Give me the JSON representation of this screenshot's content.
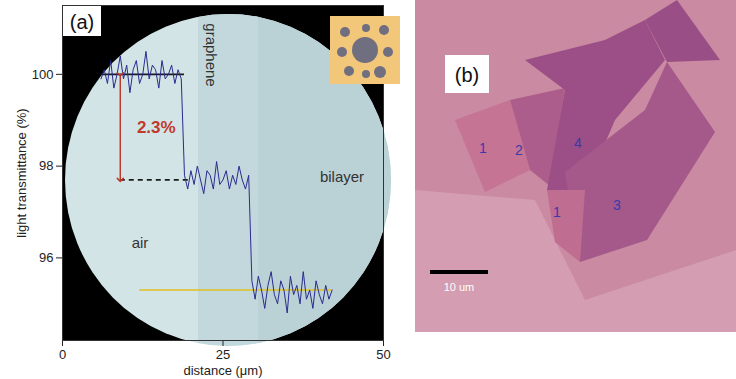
{
  "chart_data": {
    "type": "line",
    "panel_label": "(a)",
    "x_label": "distance (μm)",
    "y_label": "light transmittance (%)",
    "xlim": [
      0,
      50
    ],
    "ylim": [
      94.2,
      101.5
    ],
    "xticks": [
      0,
      25,
      50
    ],
    "yticks": [
      96,
      98,
      100
    ],
    "color": "#2b2b8f",
    "x": [
      6,
      6.5,
      7,
      7.5,
      8,
      8.5,
      9,
      9.5,
      10,
      10.5,
      11,
      11.5,
      12,
      12.5,
      13,
      13.5,
      14,
      14.5,
      15,
      15.5,
      16,
      16.5,
      17,
      17.5,
      18,
      18.5,
      19,
      19.5,
      20,
      20.5,
      21,
      21.5,
      22,
      22.5,
      23,
      23.5,
      24,
      24.5,
      25,
      25.5,
      26,
      26.5,
      27,
      27.5,
      28,
      28.5,
      29,
      29.5,
      30,
      30.5,
      31,
      31.5,
      32,
      32.5,
      33,
      33.5,
      34,
      34.5,
      35,
      35.5,
      36,
      36.5,
      37,
      37.5,
      38,
      38.5,
      39,
      39.5,
      40,
      40.5,
      41,
      41.5,
      42
    ],
    "values": [
      99.9,
      100.1,
      99.8,
      100.3,
      99.7,
      100.0,
      100.4,
      99.9,
      100.2,
      99.6,
      100.1,
      100.3,
      99.8,
      100.0,
      100.5,
      99.9,
      100.2,
      100.1,
      99.7,
      100.3,
      99.9,
      100.0,
      100.2,
      99.8,
      100.1,
      99.9,
      97.8,
      97.5,
      97.9,
      97.6,
      98.0,
      97.7,
      97.4,
      97.9,
      97.8,
      97.5,
      98.1,
      97.6,
      97.7,
      97.9,
      97.5,
      97.8,
      97.6,
      98.0,
      97.7,
      97.5,
      97.8,
      95.5,
      95.1,
      95.6,
      95.3,
      94.9,
      95.4,
      95.7,
      95.2,
      95.0,
      95.5,
      95.3,
      94.8,
      95.6,
      95.2,
      95.4,
      95.0,
      95.7,
      95.1,
      95.3,
      94.9,
      95.5,
      95.2,
      95.0,
      95.4,
      95.1,
      95.3
    ],
    "levels": [
      {
        "value": 100,
        "x_range": [
          6,
          19
        ],
        "color": "#1a1a1a",
        "line_style": "solid"
      },
      {
        "value": 97.7,
        "x_range": [
          9,
          20
        ],
        "color": "#1a1a1a",
        "line_style": "dashed"
      },
      {
        "value": 95.3,
        "x_range": [
          12,
          42
        ],
        "color": "#e0c020",
        "line_style": "solid"
      }
    ],
    "difference": {
      "label": "2.3%",
      "value": 2.3,
      "x": 9,
      "color": "#c0392b"
    },
    "annotations": [
      "air",
      "graphene",
      "bilayer"
    ]
  },
  "micrograph": {
    "panel_label": "(b)",
    "scale_bar": "10 um",
    "layer_labels": [
      "1",
      "2",
      "4",
      "1",
      "3"
    ]
  }
}
